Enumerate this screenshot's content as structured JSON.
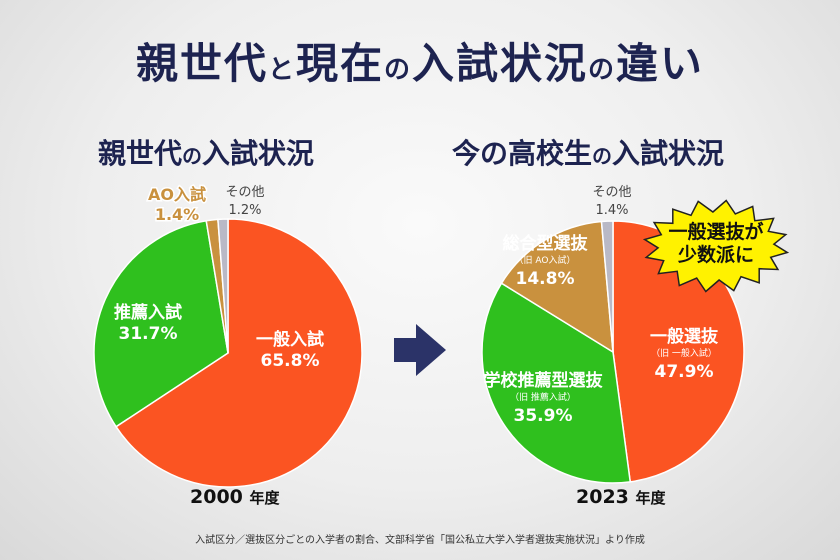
{
  "header": {
    "title_parts": [
      "親世代",
      "と",
      "現在",
      "の",
      "入試状況",
      "の",
      "違い"
    ]
  },
  "chart_data": [
    {
      "type": "pie",
      "title_parts": [
        "親世代",
        "の",
        "入試状況"
      ],
      "year": "2000",
      "year_unit": "年度",
      "slices": [
        {
          "label": "一般入試",
          "sublabel": "",
          "value": 65.8,
          "value_text": "65.8%",
          "color": "#fb5422"
        },
        {
          "label": "推薦入試",
          "sublabel": "",
          "value": 31.7,
          "value_text": "31.7%",
          "color": "#2fc01e"
        },
        {
          "label": "AO入試",
          "sublabel": "",
          "value": 1.4,
          "value_text": "1.4%",
          "color": "#c9913e"
        },
        {
          "label": "その他",
          "sublabel": "",
          "value": 1.2,
          "value_text": "1.2%",
          "color": "#b9b9c6"
        }
      ]
    },
    {
      "type": "pie",
      "title_parts": [
        "今の高校生",
        "の",
        "入試状況"
      ],
      "year": "2023",
      "year_unit": "年度",
      "slices": [
        {
          "label": "一般選抜",
          "sublabel": "（旧 一般入試）",
          "value": 47.9,
          "value_text": "47.9%",
          "color": "#fb5422"
        },
        {
          "label": "学校推薦型選抜",
          "sublabel": "（旧 推薦入試）",
          "value": 35.9,
          "value_text": "35.9%",
          "color": "#2fc01e"
        },
        {
          "label": "総合型選抜",
          "sublabel": "（旧 AO入試）",
          "value": 14.8,
          "value_text": "14.8%",
          "color": "#c9913e"
        },
        {
          "label": "その他",
          "sublabel": "",
          "value": 1.4,
          "value_text": "1.4%",
          "color": "#b9b9c6"
        }
      ]
    }
  ],
  "callout": {
    "lines": [
      "一般選抜が",
      "少数派に"
    ],
    "color": "#fff200"
  },
  "arrow": {
    "icon": "right-arrow-icon",
    "color": "#2b3368"
  },
  "source_note": "入試区分／選抜区分ごとの入学者の割合、文部科学省「国公私立大学入学者選抜実施状況」より作成"
}
